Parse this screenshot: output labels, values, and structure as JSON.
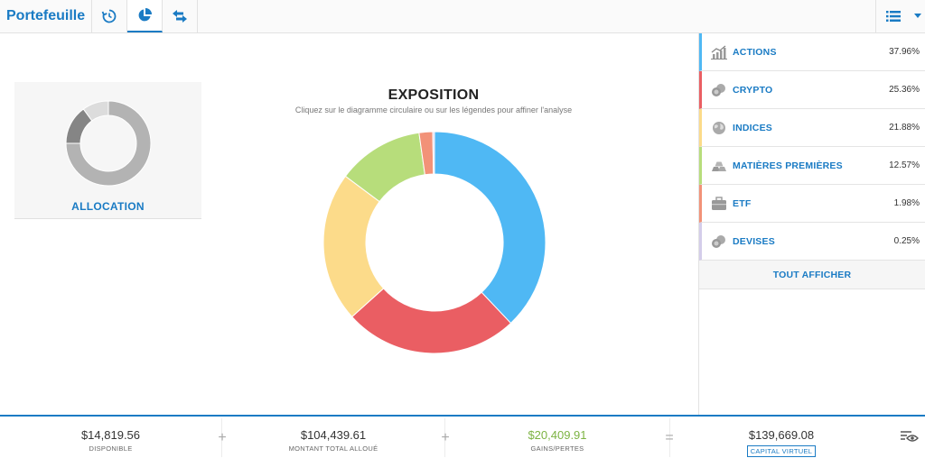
{
  "header": {
    "title": "Portefeuille",
    "tabs": [
      {
        "icon": "history-icon"
      },
      {
        "icon": "pie-chart-icon",
        "active": true
      },
      {
        "icon": "swap-arrows-icon"
      }
    ],
    "right_icon": "list-icon"
  },
  "allocation_card": {
    "label": "ALLOCATION",
    "chart_data": {
      "type": "pie",
      "categories": [
        "",
        "",
        ""
      ],
      "values": [
        75,
        15,
        10
      ],
      "colors": [
        "#b3b3b3",
        "#858585",
        "#dcdcdc"
      ]
    }
  },
  "chart": {
    "title": "EXPOSITION",
    "subtitle": "Cliquez sur le diagramme circulaire ou sur les légendes pour affiner l'analyse"
  },
  "chart_data": {
    "type": "pie",
    "title": "EXPOSITION",
    "categories": [
      "ACTIONS",
      "CRYPTO",
      "INDICES",
      "MATIÈRES PREMIÈRES",
      "ETF",
      "DEVISES"
    ],
    "values": [
      37.96,
      25.36,
      21.88,
      12.57,
      1.98,
      0.25
    ],
    "colors": [
      "#4fb8f4",
      "#ea5e63",
      "#fcdb8a",
      "#b7dd7b",
      "#f29278",
      "#d4cdea"
    ]
  },
  "legend": {
    "items": [
      {
        "name": "ACTIONS",
        "pct": "37.96%",
        "color": "#4fb8f4",
        "icon": "stocks-chart-icon"
      },
      {
        "name": "CRYPTO",
        "pct": "25.36%",
        "color": "#ea5e63",
        "icon": "coins-icon"
      },
      {
        "name": "INDICES",
        "pct": "21.88%",
        "color": "#fcdb8a",
        "icon": "globe-icon"
      },
      {
        "name": "MATIÈRES PREMIÈRES",
        "pct": "12.57%",
        "color": "#b7dd7b",
        "icon": "gold-bars-icon"
      },
      {
        "name": "ETF",
        "pct": "1.98%",
        "color": "#f29278",
        "icon": "briefcase-icon"
      },
      {
        "name": "DEVISES",
        "pct": "0.25%",
        "color": "#d4cdea",
        "icon": "currency-coins-icon"
      }
    ],
    "show_all": "TOUT AFFICHER"
  },
  "footer": {
    "available": {
      "value": "$14,819.56",
      "label": "DISPONIBLE"
    },
    "allocated": {
      "value": "$104,439.61",
      "label": "MONTANT TOTAL ALLOUÉ"
    },
    "pnl": {
      "value": "$20,409.91",
      "label": "GAINS/PERTES"
    },
    "capital": {
      "value": "$139,669.08",
      "label": "CAPITAL VIRTUEL"
    },
    "op_plus": "+",
    "op_equals": "="
  }
}
